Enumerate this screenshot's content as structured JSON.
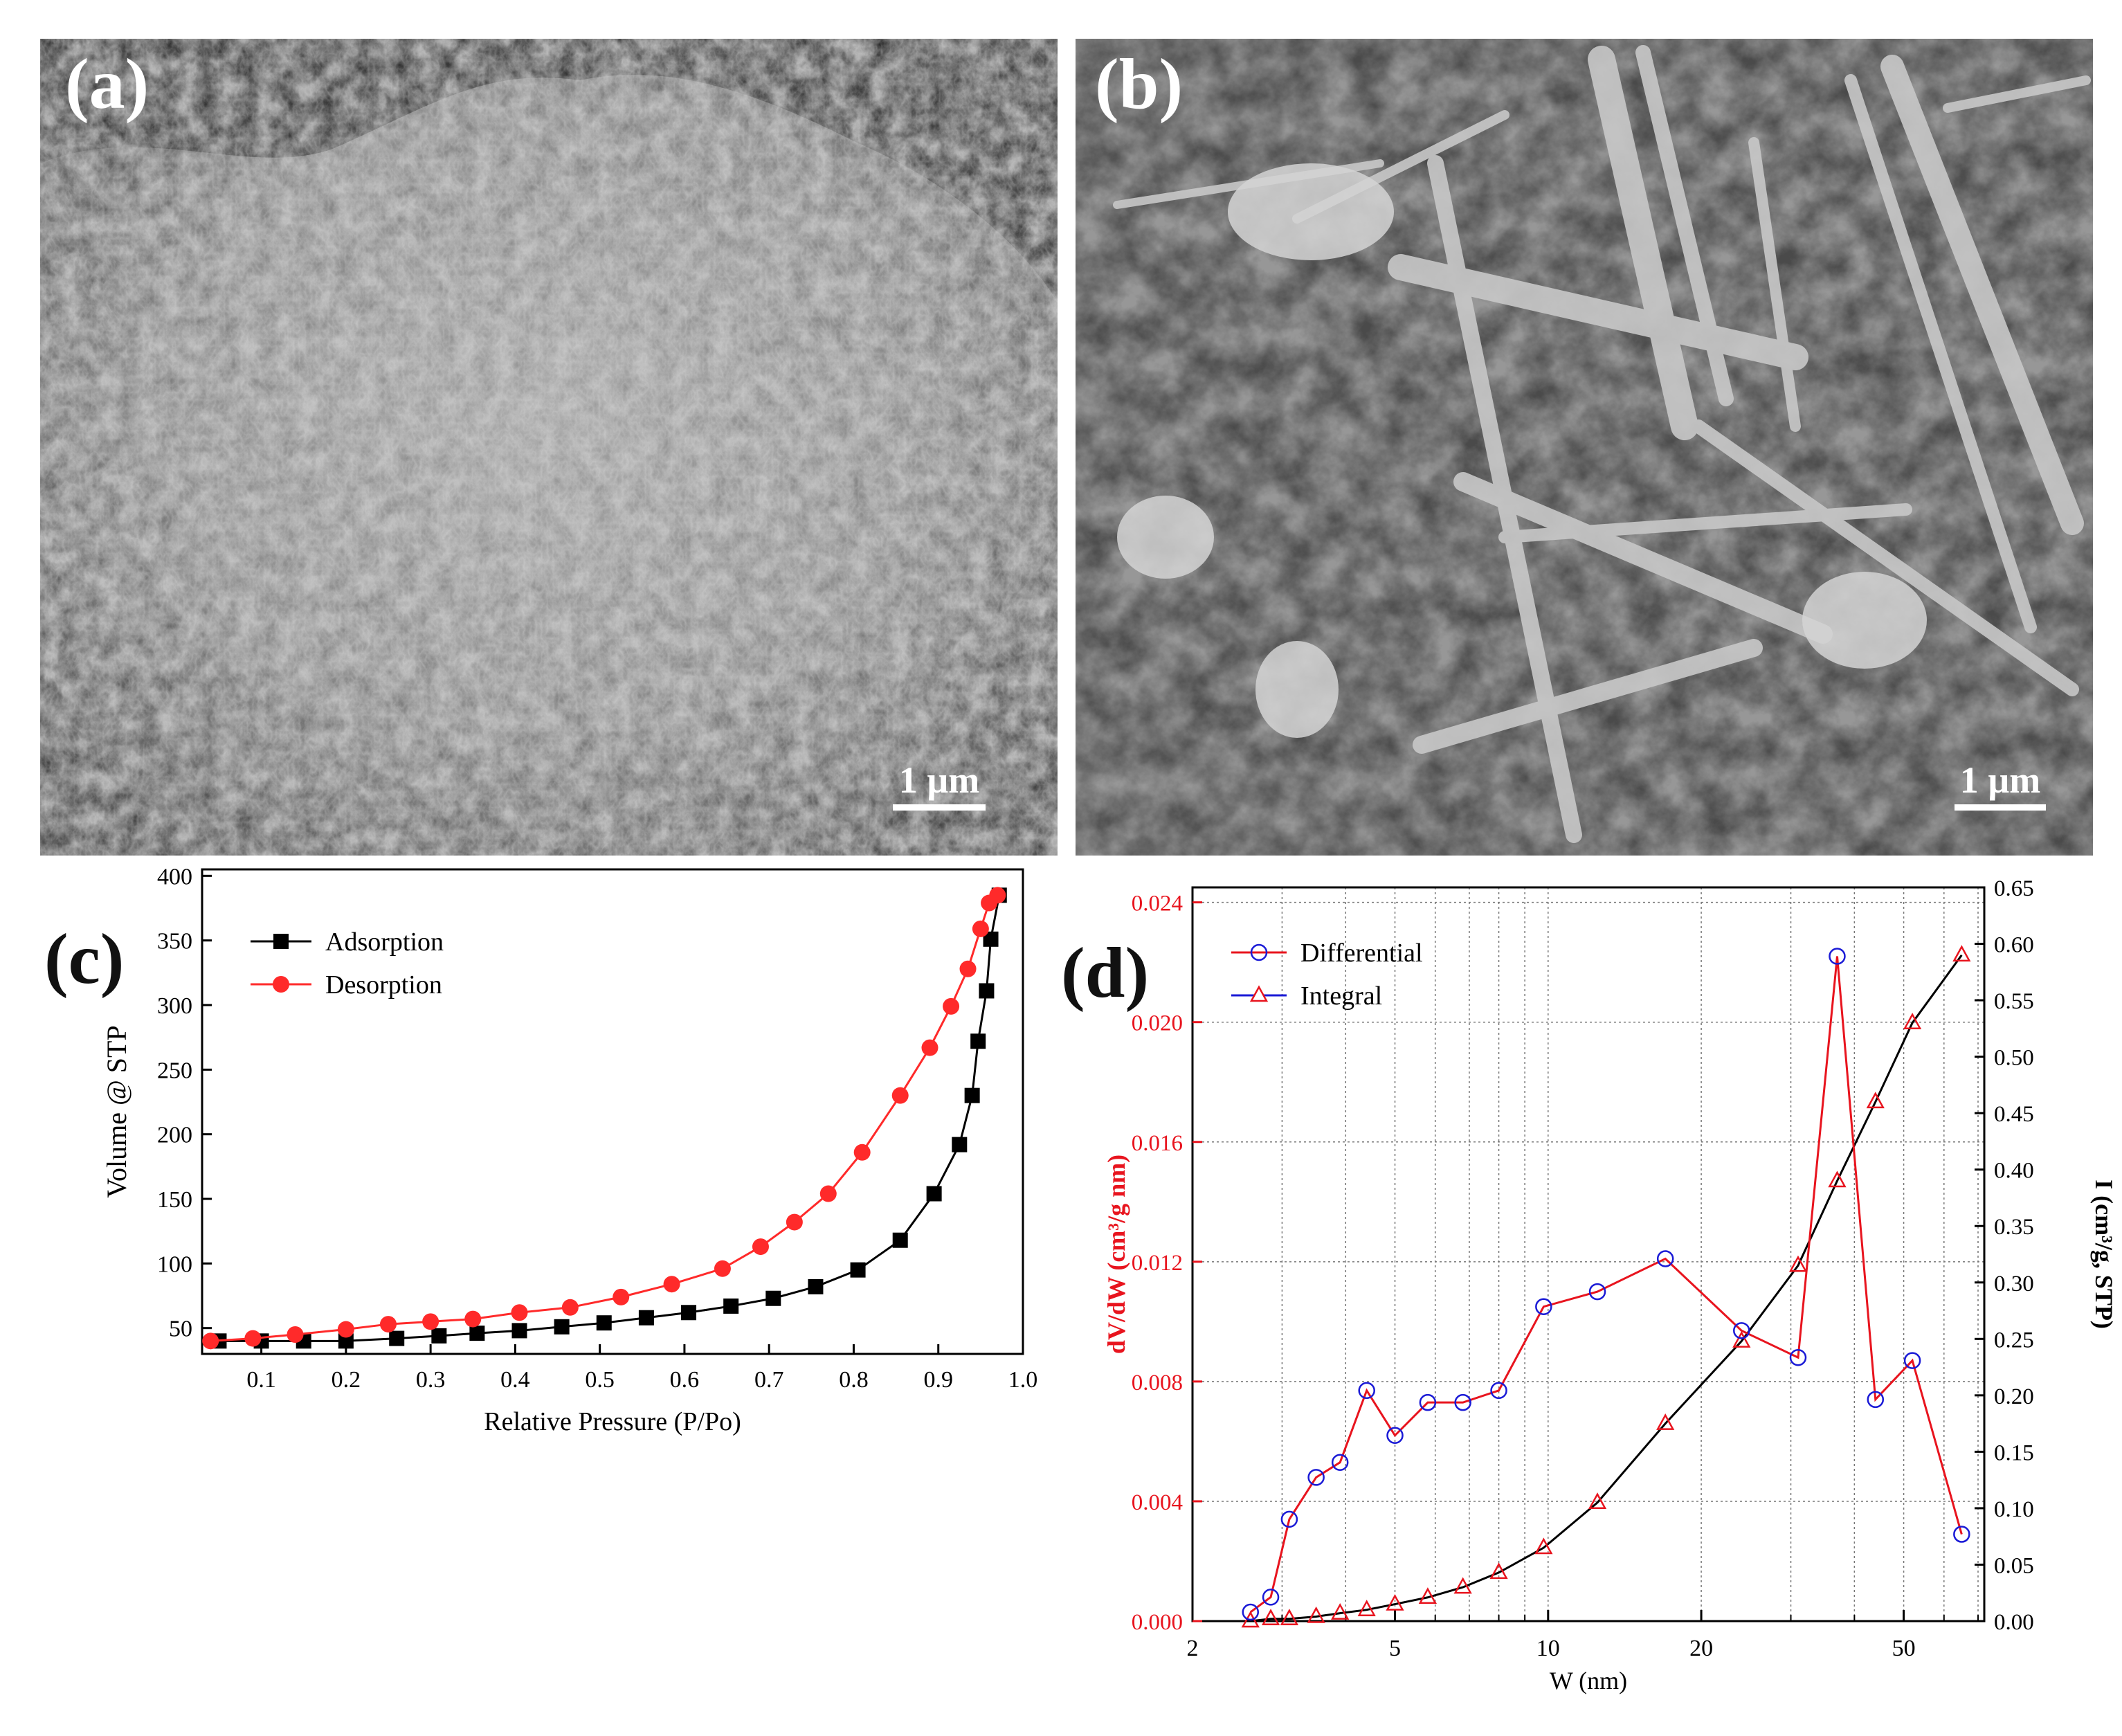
{
  "panels": {
    "a": {
      "letter": "(a)",
      "scale_label": "1 µm"
    },
    "b": {
      "letter": "(b)",
      "scale_label": "1 µm"
    },
    "c": {
      "letter": "(c)"
    },
    "d": {
      "letter": "(d)"
    }
  },
  "colors": {
    "adsorption": "#000000",
    "desorption": "#ff2a2a",
    "differential": "#e8141e",
    "differential_marker": "#1a1ad6",
    "integral_line": "#000000",
    "integral_marker": "#e8141e",
    "left_axis_text": "#e8141e"
  },
  "chart_data": [
    {
      "type": "line",
      "panel": "c",
      "xlabel": "Relative Pressure (P/Po)",
      "ylabel": "Volume @ STP",
      "xlim": [
        0.03,
        1.0
      ],
      "ylim": [
        30,
        405
      ],
      "xticks": [
        0.1,
        0.2,
        0.3,
        0.4,
        0.5,
        0.6,
        0.7,
        0.8,
        0.9,
        1.0
      ],
      "xtick_labels": [
        "0.1",
        "0.2",
        "0.3",
        "0.4",
        "0.5",
        "0.6",
        "0.7",
        "0.8",
        "0.9",
        "1.0"
      ],
      "yticks": [
        50,
        100,
        150,
        200,
        250,
        300,
        350,
        400
      ],
      "ytick_labels": [
        "50",
        "100",
        "150",
        "200",
        "250",
        "300",
        "350",
        "400"
      ],
      "legend_position": "top-left",
      "grid": false,
      "series": [
        {
          "name": "Adsorption",
          "marker": "square",
          "x": [
            0.05,
            0.1,
            0.15,
            0.2,
            0.26,
            0.31,
            0.355,
            0.405,
            0.455,
            0.505,
            0.555,
            0.605,
            0.655,
            0.705,
            0.755,
            0.805,
            0.855,
            0.895,
            0.925,
            0.94,
            0.947,
            0.957,
            0.962,
            0.972
          ],
          "y": [
            40,
            40,
            40,
            40,
            42,
            44,
            46,
            48,
            51,
            54,
            58,
            62,
            67,
            73,
            82,
            95,
            118,
            154,
            192,
            230,
            272,
            311,
            351,
            385
          ]
        },
        {
          "name": "Desorption",
          "marker": "circle",
          "x": [
            0.04,
            0.09,
            0.14,
            0.2,
            0.25,
            0.3,
            0.35,
            0.405,
            0.465,
            0.525,
            0.585,
            0.645,
            0.69,
            0.73,
            0.77,
            0.81,
            0.855,
            0.89,
            0.915,
            0.935,
            0.95,
            0.96,
            0.97
          ],
          "y": [
            40,
            42,
            45,
            49,
            53,
            55,
            57,
            62,
            66,
            74,
            84,
            96,
            113,
            132,
            154,
            186,
            230,
            267,
            299,
            328,
            359,
            379,
            385
          ]
        }
      ]
    },
    {
      "type": "line",
      "panel": "d",
      "xlabel": "W (nm)",
      "ylabel": "dV/dW (cm³/g nm)",
      "y2label": "I (cm³/g, STP)",
      "xscale": "log",
      "xlim": [
        2,
        72
      ],
      "ylim": [
        0,
        0.0245
      ],
      "y2lim": [
        0,
        0.65
      ],
      "xticks": [
        2,
        5,
        10,
        20,
        50
      ],
      "xtick_labels": [
        "2",
        "5",
        "10",
        "20",
        "50"
      ],
      "yticks": [
        0,
        0.004,
        0.008,
        0.012,
        0.016,
        0.02,
        0.024
      ],
      "ytick_labels": [
        "0.000",
        "0.004",
        "0.008",
        "0.012",
        "0.016",
        "0.020",
        "0.024"
      ],
      "y2ticks": [
        0,
        0.05,
        0.1,
        0.15,
        0.2,
        0.25,
        0.3,
        0.35,
        0.4,
        0.45,
        0.5,
        0.55,
        0.6,
        0.65
      ],
      "y2tick_labels": [
        "0.00",
        "0.05",
        "0.10",
        "0.15",
        "0.20",
        "0.25",
        "0.30",
        "0.35",
        "0.40",
        "0.45",
        "0.50",
        "0.55",
        "0.60",
        "0.65"
      ],
      "legend_position": "top-left",
      "grid": true,
      "series": [
        {
          "name": "Differential",
          "marker": "open-circle",
          "axis": "left",
          "x": [
            2.6,
            2.85,
            3.1,
            3.5,
            3.9,
            4.4,
            5.0,
            5.8,
            6.8,
            8.0,
            9.8,
            12.5,
            17.0,
            24.0,
            31.0,
            37.0,
            44.0,
            52.0,
            65.0
          ],
          "y": [
            0.0003,
            0.0008,
            0.0034,
            0.0048,
            0.0053,
            0.0077,
            0.0062,
            0.0073,
            0.0073,
            0.0077,
            0.0105,
            0.011,
            0.0121,
            0.0097,
            0.0088,
            0.0222,
            0.0074,
            0.0087,
            0.0029
          ]
        },
        {
          "name": "Integral",
          "marker": "open-triangle",
          "axis": "right",
          "x": [
            2.6,
            2.85,
            3.1,
            3.5,
            3.9,
            4.4,
            5.0,
            5.8,
            6.8,
            8.0,
            9.8,
            12.5,
            17.0,
            24.0,
            31.0,
            37.0,
            44.0,
            52.0,
            65.0
          ],
          "y": [
            0.0,
            0.002,
            0.002,
            0.004,
            0.007,
            0.01,
            0.015,
            0.021,
            0.03,
            0.043,
            0.065,
            0.105,
            0.175,
            0.248,
            0.315,
            0.39,
            0.46,
            0.53,
            0.59
          ]
        }
      ]
    }
  ]
}
